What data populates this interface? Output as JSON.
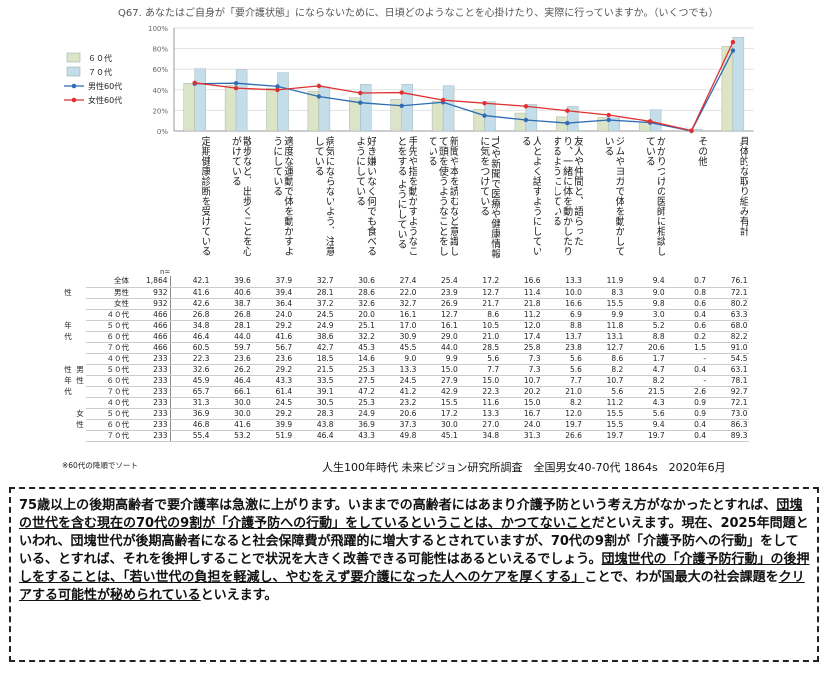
{
  "title": "Q67. あなたはご自身が「要介護状態」にならないために、日頃どのようなことを心掛けたり、実際に行っていますか。（いくつでも）",
  "chart_data": {
    "type": "bar",
    "y_ticks": [
      "0%",
      "20%",
      "40%",
      "60%",
      "80%",
      "100%"
    ],
    "ylim": [
      0,
      100
    ],
    "legend_position": "left",
    "categories": [
      "定期健康診断を受けている",
      "散歩など、出歩くことを心がけている",
      "適度な運動で体を動かすようにしている",
      "病気にならないよう、注意している",
      "好き嫌いなく何でも食べるようにしている",
      "手先や指を動かすようなことをする ようにしている",
      "新聞や本を読むなど意識して頭を使うようなことをしている",
      "TVや新聞で医療や健康情報に気をつけている",
      "人とよく話すようにしている",
      "友人や仲間と、語らったり、一緒に体を動かしたりするようにしている",
      "ジムやヨガで体を動かしている",
      "かかりつけの医師に相談している",
      "その他",
      "具体的な取り組み有計"
    ],
    "series": [
      {
        "name": "６０代",
        "kind": "bar",
        "color": "#dbe4c6",
        "values": [
          46.4,
          44.0,
          41.6,
          38.6,
          32.2,
          30.9,
          29.0,
          21.0,
          17.4,
          13.7,
          13.1,
          8.8,
          0.2,
          82.2
        ]
      },
      {
        "name": "７０代",
        "kind": "bar",
        "color": "#c3dde9",
        "values": [
          60.5,
          59.7,
          56.7,
          42.7,
          45.3,
          45.5,
          44.0,
          28.5,
          25.8,
          23.8,
          12.7,
          20.6,
          1.5,
          91.0
        ]
      },
      {
        "name": "男性60代",
        "kind": "line",
        "color": "#2e6db4",
        "values": [
          45.9,
          46.4,
          43.3,
          33.5,
          27.5,
          24.5,
          27.9,
          15.0,
          10.7,
          7.7,
          10.7,
          8.2,
          0.0,
          78.1
        ]
      },
      {
        "name": "女性60代",
        "kind": "line",
        "color": "#e03030",
        "values": [
          46.8,
          41.6,
          39.9,
          43.8,
          36.9,
          37.3,
          30.0,
          27.0,
          24.0,
          19.7,
          15.5,
          9.4,
          0.4,
          86.3
        ]
      }
    ]
  },
  "table": {
    "n_label": "n=",
    "rows": [
      {
        "g1": "",
        "g2": "",
        "label": "全体",
        "n": "1,864",
        "v": [
          "42.1",
          "39.6",
          "37.9",
          "32.7",
          "30.6",
          "27.4",
          "25.4",
          "17.2",
          "16.6",
          "13.3",
          "11.9",
          "9.4",
          "0.7",
          "76.1"
        ]
      },
      {
        "g1": "性",
        "g2": "",
        "label": "男性",
        "n": "932",
        "v": [
          "41.6",
          "40.6",
          "39.4",
          "28.1",
          "28.6",
          "22.0",
          "23.9",
          "12.7",
          "11.4",
          "10.0",
          "8.3",
          "9.0",
          "0.8",
          "72.1"
        ]
      },
      {
        "g1": "",
        "g2": "",
        "label": "女性",
        "n": "932",
        "v": [
          "42.6",
          "38.7",
          "36.4",
          "37.2",
          "32.6",
          "32.7",
          "26.9",
          "21.7",
          "21.8",
          "16.6",
          "15.5",
          "9.8",
          "0.6",
          "80.2"
        ]
      },
      {
        "g1": "",
        "g2": "",
        "label": "４０代",
        "n": "466",
        "v": [
          "26.8",
          "26.8",
          "24.0",
          "24.5",
          "20.0",
          "16.1",
          "12.7",
          "8.6",
          "11.2",
          "6.9",
          "9.9",
          "3.0",
          "0.4",
          "63.3"
        ]
      },
      {
        "g1": "年",
        "g2": "",
        "label": "５０代",
        "n": "466",
        "v": [
          "34.8",
          "28.1",
          "29.2",
          "24.9",
          "25.1",
          "17.0",
          "16.1",
          "10.5",
          "12.0",
          "8.8",
          "11.8",
          "5.2",
          "0.6",
          "68.0"
        ]
      },
      {
        "g1": "代",
        "g2": "",
        "label": "６０代",
        "n": "466",
        "v": [
          "46.4",
          "44.0",
          "41.6",
          "38.6",
          "32.2",
          "30.9",
          "29.0",
          "21.0",
          "17.4",
          "13.7",
          "13.1",
          "8.8",
          "0.2",
          "82.2"
        ]
      },
      {
        "g1": "",
        "g2": "",
        "label": "７０代",
        "n": "466",
        "v": [
          "60.5",
          "59.7",
          "56.7",
          "42.7",
          "45.3",
          "45.5",
          "44.0",
          "28.5",
          "25.8",
          "23.8",
          "12.7",
          "20.6",
          "1.5",
          "91.0"
        ]
      },
      {
        "g1": "",
        "g2": "",
        "label": "４０代",
        "n": "233",
        "v": [
          "22.3",
          "23.6",
          "23.6",
          "18.5",
          "14.6",
          "9.0",
          "9.9",
          "5.6",
          "7.3",
          "5.6",
          "8.6",
          "1.7",
          "-",
          "54.5"
        ]
      },
      {
        "g1": "性",
        "g2": "男",
        "label": "５０代",
        "n": "233",
        "v": [
          "32.6",
          "26.2",
          "29.2",
          "21.5",
          "25.3",
          "13.3",
          "15.0",
          "7.7",
          "7.3",
          "5.6",
          "8.2",
          "4.7",
          "0.4",
          "63.1"
        ]
      },
      {
        "g1": "年",
        "g2": "性",
        "label": "６０代",
        "n": "233",
        "v": [
          "45.9",
          "46.4",
          "43.3",
          "33.5",
          "27.5",
          "24.5",
          "27.9",
          "15.0",
          "10.7",
          "7.7",
          "10.7",
          "8.2",
          "-",
          "78.1"
        ]
      },
      {
        "g1": "代",
        "g2": "",
        "label": "７０代",
        "n": "233",
        "v": [
          "65.7",
          "66.1",
          "61.4",
          "39.1",
          "47.2",
          "41.2",
          "42.9",
          "22.3",
          "20.2",
          "21.0",
          "5.6",
          "21.5",
          "2.6",
          "92.7"
        ]
      },
      {
        "g1": "",
        "g2": "",
        "label": "４０代",
        "n": "233",
        "v": [
          "31.3",
          "30.0",
          "24.5",
          "30.5",
          "25.3",
          "23.2",
          "15.5",
          "11.6",
          "15.0",
          "8.2",
          "11.2",
          "4.3",
          "0.9",
          "72.1"
        ]
      },
      {
        "g1": "",
        "g2": "女",
        "label": "５０代",
        "n": "233",
        "v": [
          "36.9",
          "30.0",
          "29.2",
          "28.3",
          "24.9",
          "20.6",
          "17.2",
          "13.3",
          "16.7",
          "12.0",
          "15.5",
          "5.6",
          "0.9",
          "73.0"
        ]
      },
      {
        "g1": "",
        "g2": "性",
        "label": "６０代",
        "n": "233",
        "v": [
          "46.8",
          "41.6",
          "39.9",
          "43.8",
          "36.9",
          "37.3",
          "30.0",
          "27.0",
          "24.0",
          "19.7",
          "15.5",
          "9.4",
          "0.4",
          "86.3"
        ]
      },
      {
        "g1": "",
        "g2": "",
        "label": "７０代",
        "n": "233",
        "v": [
          "55.4",
          "53.2",
          "51.9",
          "46.4",
          "43.3",
          "49.8",
          "45.1",
          "34.8",
          "31.3",
          "26.6",
          "19.7",
          "19.7",
          "0.4",
          "89.3"
        ]
      }
    ]
  },
  "note": "※60代の降順でソート",
  "source": "人生100年時代 未来ビジョン研究所調査　全国男女40-70代 1864s　2020年6月",
  "comment": {
    "p1": "75歳以上の後期高齢者で要介護率は急激に上がります。いままでの高齢者にはあまり介護予防という考え方がなかったとすれば、",
    "u1": "団塊の世代を含む現在の70代の9割が「介護予防への行動」をしているということは、かつてないこと",
    "p2": "だといえます。現在、2025年問題といわれ、団塊世代が後期高齢者になると社会保障費が飛躍的に増大するとされていますが、70代の9割が「介護予防への行動」をしている、とすれば、それを後押しすることで状況を大きく改善できる可能性はあるといえるでしょう。",
    "u2": "団塊世代の「介護予防行動」の後押しをすることは、「若い世代の負担を軽減し、やむをえず要介護になった人へのケアを厚くする」",
    "p3": "ことで、わが国最大の社会課題を",
    "u3": "クリアする可能性が秘められている",
    "p4": "といえます。"
  }
}
